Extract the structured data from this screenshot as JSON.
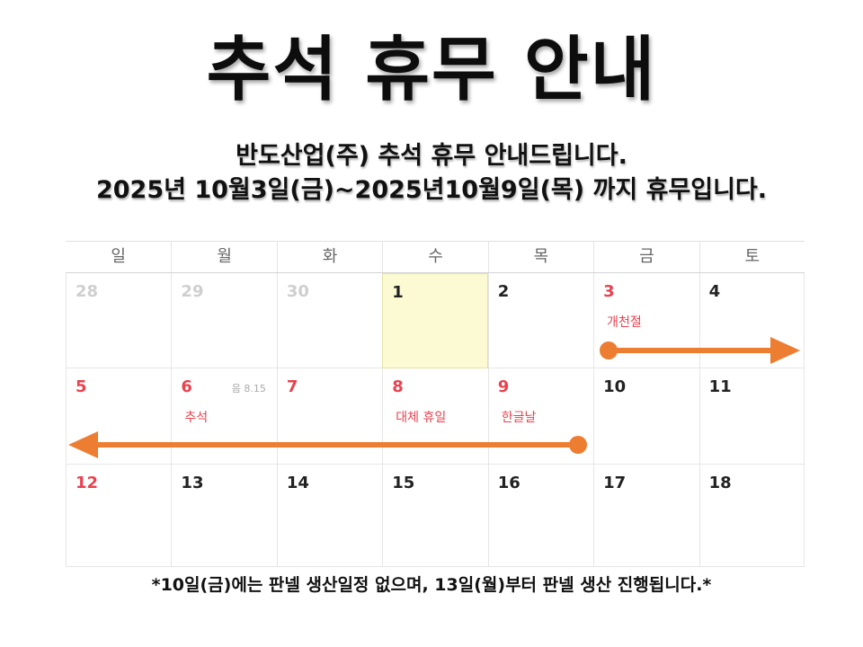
{
  "title": "추석 휴무 안내",
  "subtitle_line1": "반도산업(주) 추석 휴무 안내드립니다.",
  "subtitle_line2": "2025년 10월3일(금)~2025년10월9일(목) 까지 휴무입니다.",
  "calendar": {
    "weekdays": [
      "일",
      "월",
      "화",
      "수",
      "목",
      "금",
      "토"
    ],
    "weeks": [
      [
        {
          "day": "28",
          "muted": true
        },
        {
          "day": "29",
          "muted": true
        },
        {
          "day": "30",
          "muted": true
        },
        {
          "day": "1",
          "today": true
        },
        {
          "day": "2"
        },
        {
          "day": "3",
          "red": true,
          "event": "개천절"
        },
        {
          "day": "4"
        }
      ],
      [
        {
          "day": "5",
          "red": true
        },
        {
          "day": "6",
          "red": true,
          "event": "추석",
          "lunar": "음 8.15"
        },
        {
          "day": "7",
          "red": true
        },
        {
          "day": "8",
          "red": true,
          "event": "대체 휴일"
        },
        {
          "day": "9",
          "red": true,
          "event": "한글날"
        },
        {
          "day": "10"
        },
        {
          "day": "11"
        }
      ],
      [
        {
          "day": "12",
          "red": true
        },
        {
          "day": "13"
        },
        {
          "day": "14"
        },
        {
          "day": "15"
        },
        {
          "day": "16"
        },
        {
          "day": "17"
        },
        {
          "day": "18"
        }
      ]
    ]
  },
  "arrow_color": "#ed7d31",
  "holiday_red": "#e8434f",
  "footnote": "*10일(금)에는 판넬 생산일정 없으며, 13일(월)부터 판넬 생산 진행됩니다.*"
}
